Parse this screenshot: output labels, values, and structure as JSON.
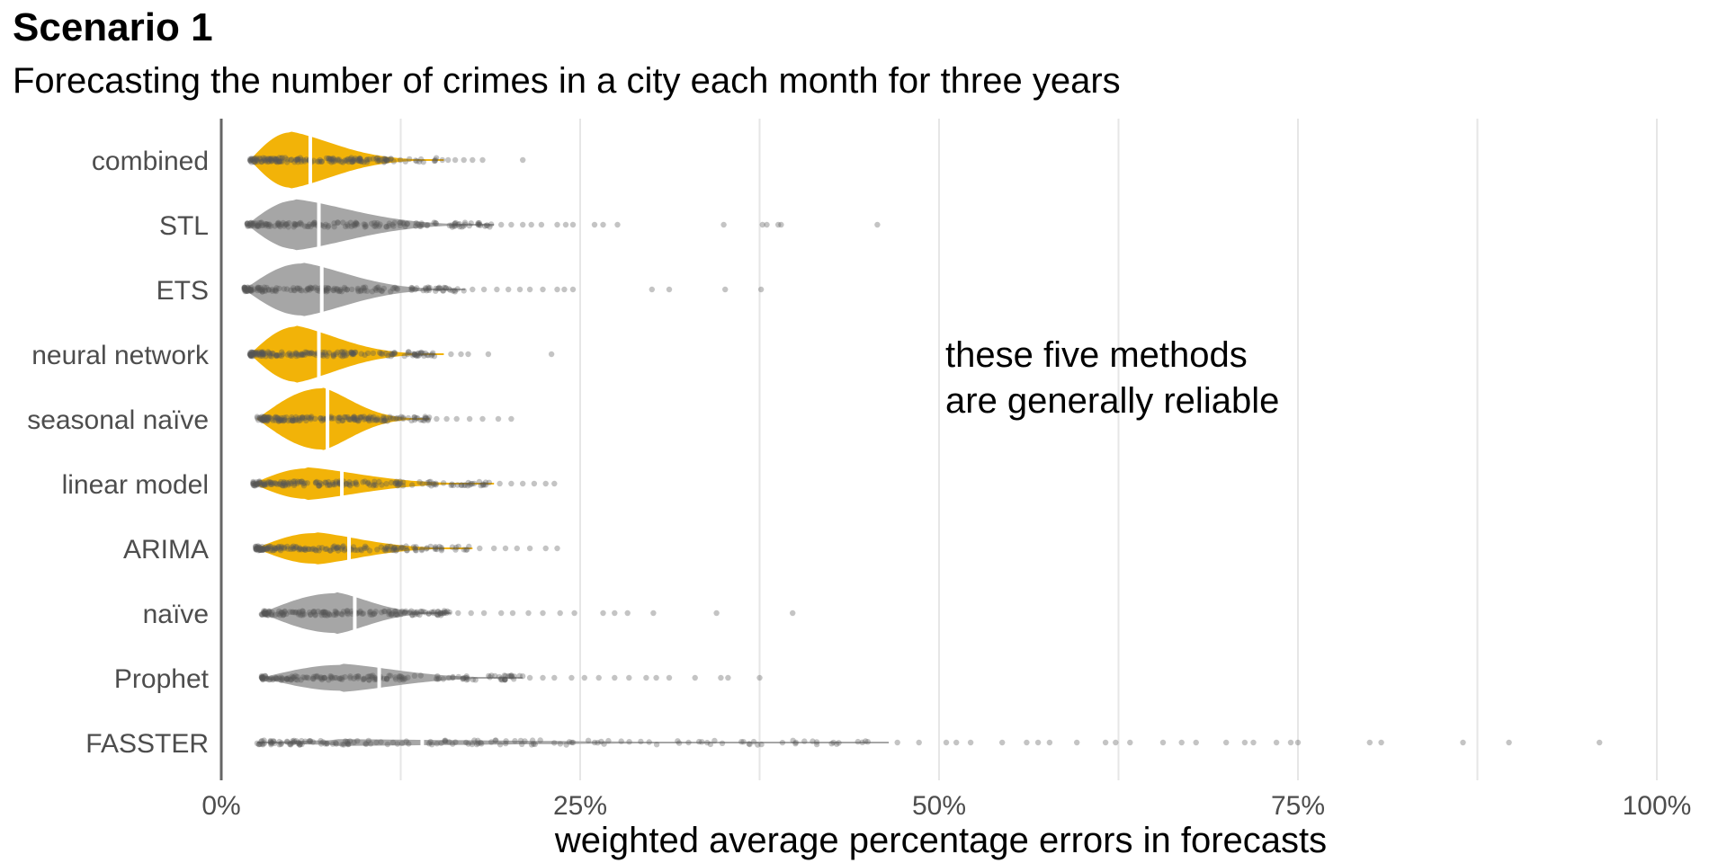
{
  "title": "Scenario 1",
  "subtitle": "Forecasting the number of crimes in a city each month for three years",
  "colors": {
    "highlight": "#f2b308",
    "other": "#a6a6a6",
    "points": "#555555",
    "grid": "#e6e6e6",
    "axis": "#666666"
  },
  "chart_data": {
    "type": "violin",
    "xlabel": "weighted average percentage errors in forecasts",
    "ylabel": "",
    "xlim": [
      0,
      100
    ],
    "xticks": [
      0,
      25,
      50,
      75,
      100
    ],
    "xtick_labels": [
      "0%",
      "25%",
      "50%",
      "75%",
      "100%"
    ],
    "grid": "vertical",
    "annotation": [
      "these five methods",
      "are generally reliable"
    ],
    "annotation_anchor": {
      "x": 50,
      "between": [
        "neural network",
        "seasonal naïve"
      ]
    },
    "series": [
      {
        "name": "combined",
        "highlight": true,
        "median": 6.2,
        "peak": 4.8,
        "peak_halfwidth": 0.36,
        "min": 2.0,
        "body_end": 15.5,
        "outliers": [
          15.8,
          16.3,
          16.9,
          17.5,
          18.2,
          21.0
        ]
      },
      {
        "name": "STL",
        "highlight": false,
        "median": 6.8,
        "peak": 5.2,
        "peak_halfwidth": 0.32,
        "min": 1.8,
        "body_end": 19.0,
        "outliers": [
          19.5,
          20.2,
          21.0,
          21.6,
          22.3,
          23.4,
          24.0,
          24.5,
          26.0,
          26.6,
          27.6,
          35.0,
          37.7,
          38.0,
          38.8,
          39.0,
          45.7
        ]
      },
      {
        "name": "ETS",
        "highlight": false,
        "median": 7.0,
        "peak": 5.6,
        "peak_halfwidth": 0.34,
        "min": 1.6,
        "body_end": 17.0,
        "outliers": [
          17.5,
          18.3,
          19.2,
          20.0,
          20.8,
          21.5,
          22.4,
          23.4,
          23.9,
          24.5,
          30.0,
          31.2,
          35.1,
          37.6
        ]
      },
      {
        "name": "neural network",
        "highlight": true,
        "median": 6.8,
        "peak": 5.2,
        "peak_halfwidth": 0.36,
        "min": 2.0,
        "body_end": 15.5,
        "outliers": [
          16.0,
          16.7,
          17.2,
          18.6,
          23.0
        ]
      },
      {
        "name": "seasonal naïve",
        "highlight": true,
        "median": 7.4,
        "peak": 7.0,
        "peak_halfwidth": 0.4,
        "min": 2.5,
        "body_end": 14.5,
        "outliers": [
          15.0,
          15.7,
          16.4,
          17.3,
          18.2,
          19.3,
          20.2
        ]
      },
      {
        "name": "linear model",
        "highlight": true,
        "median": 8.4,
        "peak": 6.0,
        "peak_halfwidth": 0.2,
        "min": 2.2,
        "body_end": 19.0,
        "outliers": [
          19.4,
          20.2,
          21.0,
          21.8,
          22.6,
          23.2
        ]
      },
      {
        "name": "ARIMA",
        "highlight": true,
        "median": 8.9,
        "peak": 6.5,
        "peak_halfwidth": 0.2,
        "min": 2.4,
        "body_end": 17.5,
        "outliers": [
          18.0,
          19.0,
          19.8,
          20.6,
          21.5,
          22.6,
          23.4
        ]
      },
      {
        "name": "naïve",
        "highlight": false,
        "median": 9.3,
        "peak": 8.0,
        "peak_halfwidth": 0.26,
        "min": 2.8,
        "body_end": 16.0,
        "outliers": [
          16.5,
          17.4,
          18.3,
          19.5,
          20.3,
          21.4,
          22.4,
          23.6,
          24.6,
          26.6,
          27.4,
          28.3,
          30.1,
          34.5,
          39.8
        ]
      },
      {
        "name": "Prophet",
        "highlight": false,
        "median": 11.0,
        "peak": 8.5,
        "peak_halfwidth": 0.17,
        "min": 2.8,
        "body_end": 21.0,
        "outliers": [
          21.5,
          22.4,
          23.2,
          24.4,
          25.3,
          26.3,
          27.4,
          28.4,
          29.6,
          30.3,
          31.2,
          33.0,
          34.8,
          35.3,
          37.5
        ]
      },
      {
        "name": "FASSTER",
        "highlight": false,
        "median": 14.0,
        "peak": 8.0,
        "peak_halfwidth": 0.03,
        "min": 2.5,
        "body_end": 46.5,
        "outliers": [
          47.1,
          48.6,
          50.5,
          51.2,
          52.2,
          54.4,
          56.1,
          56.9,
          57.7,
          59.6,
          61.6,
          62.3,
          63.3,
          65.6,
          66.9,
          67.9,
          70.0,
          71.3,
          71.9,
          73.5,
          74.5,
          75.0,
          80.0,
          80.8,
          86.5,
          89.7,
          96.0
        ]
      }
    ]
  }
}
